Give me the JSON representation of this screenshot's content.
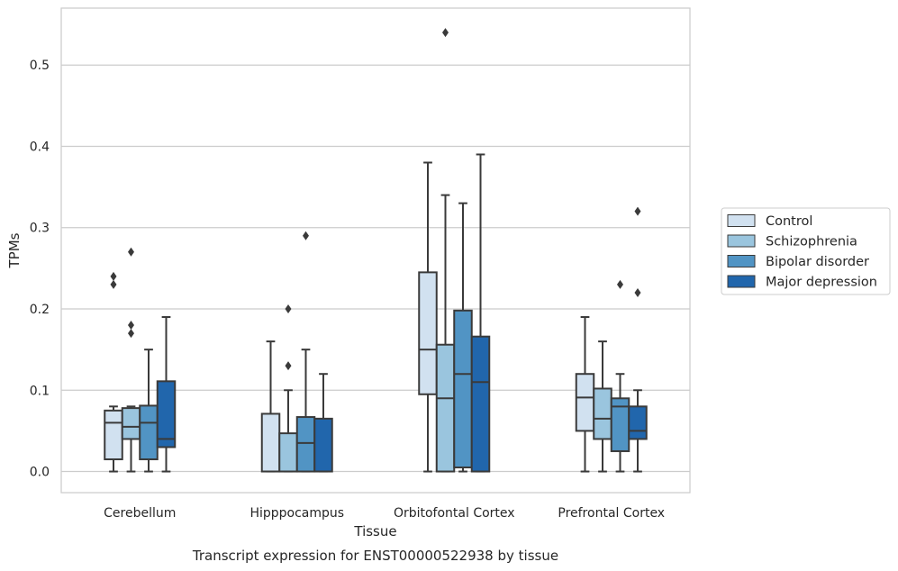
{
  "chart_data": {
    "type": "box",
    "title": "Transcript expression for ENST00000522938 by tissue",
    "xlabel": "Tissue",
    "ylabel": "TPMs",
    "ylim": [
      -0.026,
      0.57
    ],
    "yticks": [
      "0.0",
      "0.1",
      "0.2",
      "0.3",
      "0.4",
      "0.5"
    ],
    "ytick_values": [
      0.0,
      0.1,
      0.2,
      0.3,
      0.4,
      0.5
    ],
    "grid": "horizontal",
    "legend_position": "right",
    "categories": [
      "Cerebellum",
      "Hipppocampus",
      "Orbitofontal Cortex",
      "Prefrontal Cortex"
    ],
    "series": [
      {
        "name": "Control",
        "color": "#d1e1f0",
        "boxes": [
          {
            "whisker_low": 0.0,
            "q1": 0.015,
            "median": 0.06,
            "q3": 0.075,
            "whisker_high": 0.08,
            "outliers": [
              0.24,
              0.23
            ]
          },
          {
            "whisker_low": 0.0,
            "q1": 0.0,
            "median": 0.0,
            "q3": 0.071,
            "whisker_high": 0.16,
            "outliers": []
          },
          {
            "whisker_low": 0.0,
            "q1": 0.095,
            "median": 0.15,
            "q3": 0.245,
            "whisker_high": 0.38,
            "outliers": []
          },
          {
            "whisker_low": 0.0,
            "q1": 0.05,
            "median": 0.091,
            "q3": 0.12,
            "whisker_high": 0.19,
            "outliers": []
          }
        ]
      },
      {
        "name": "Schizophrenia",
        "color": "#9ac5de",
        "boxes": [
          {
            "whisker_low": 0.0,
            "q1": 0.04,
            "median": 0.055,
            "q3": 0.078,
            "whisker_high": 0.08,
            "outliers": [
              0.27,
              0.18,
              0.17
            ]
          },
          {
            "whisker_low": 0.0,
            "q1": 0.0,
            "median": 0.0,
            "q3": 0.047,
            "whisker_high": 0.1,
            "outliers": [
              0.2,
              0.13
            ]
          },
          {
            "whisker_low": 0.0,
            "q1": 0.0,
            "median": 0.09,
            "q3": 0.156,
            "whisker_high": 0.34,
            "outliers": [
              0.54
            ]
          },
          {
            "whisker_low": 0.0,
            "q1": 0.04,
            "median": 0.065,
            "q3": 0.102,
            "whisker_high": 0.16,
            "outliers": []
          }
        ]
      },
      {
        "name": "Bipolar disorder",
        "color": "#5194c4",
        "boxes": [
          {
            "whisker_low": 0.0,
            "q1": 0.015,
            "median": 0.06,
            "q3": 0.081,
            "whisker_high": 0.15,
            "outliers": []
          },
          {
            "whisker_low": 0.0,
            "q1": 0.0,
            "median": 0.035,
            "q3": 0.067,
            "whisker_high": 0.15,
            "outliers": [
              0.29
            ]
          },
          {
            "whisker_low": 0.0,
            "q1": 0.005,
            "median": 0.12,
            "q3": 0.198,
            "whisker_high": 0.33,
            "outliers": []
          },
          {
            "whisker_low": 0.0,
            "q1": 0.025,
            "median": 0.08,
            "q3": 0.09,
            "whisker_high": 0.12,
            "outliers": [
              0.23
            ]
          }
        ]
      },
      {
        "name": "Major depression",
        "color": "#2166ac",
        "boxes": [
          {
            "whisker_low": 0.0,
            "q1": 0.03,
            "median": 0.04,
            "q3": 0.111,
            "whisker_high": 0.19,
            "outliers": []
          },
          {
            "whisker_low": 0.0,
            "q1": 0.0,
            "median": 0.0,
            "q3": 0.065,
            "whisker_high": 0.12,
            "outliers": []
          },
          {
            "whisker_low": 0.0,
            "q1": 0.0,
            "median": 0.11,
            "q3": 0.166,
            "whisker_high": 0.39,
            "outliers": []
          },
          {
            "whisker_low": 0.0,
            "q1": 0.04,
            "median": 0.05,
            "q3": 0.08,
            "whisker_high": 0.1,
            "outliers": [
              0.32,
              0.22
            ]
          }
        ]
      }
    ],
    "colors": {
      "line": "#3a3a3a",
      "grid": "#cccccc",
      "frame": "#cccccc"
    }
  }
}
